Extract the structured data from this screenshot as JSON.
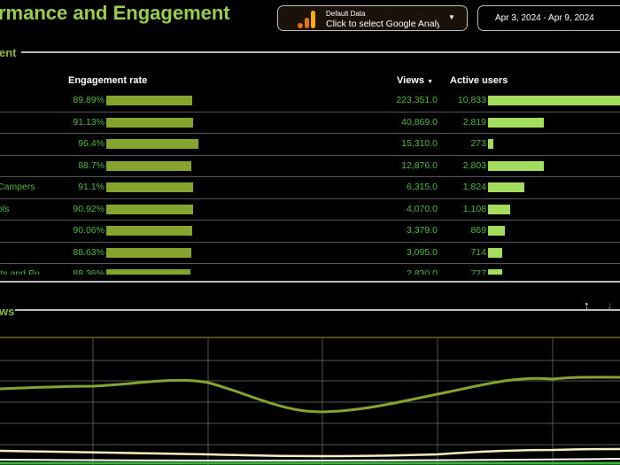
{
  "header": {
    "title": "rmance and Engagement",
    "data_source": {
      "label": "Default Data",
      "value": "Click to select Google Analyti",
      "icon": "google-analytics-icon"
    },
    "date_range": "Apr 3, 2024 - Apr 9, 2024"
  },
  "table_section": {
    "title": "ent",
    "columns": {
      "engagement": "Engagement rate",
      "views": "Views",
      "active_users": "Active users"
    },
    "rows": [
      {
        "name": "",
        "engagement": "89.89%",
        "rate": 89.89,
        "views": "223,351.0",
        "users": "10,833",
        "users_n": 10833
      },
      {
        "name": "",
        "engagement": "91.13%",
        "rate": 91.13,
        "views": "40,869.0",
        "users": "2,819",
        "users_n": 2819
      },
      {
        "name": "",
        "engagement": "96.4%",
        "rate": 96.4,
        "views": "15,310.0",
        "users": "273",
        "users_n": 273
      },
      {
        "name": "",
        "engagement": "88.7%",
        "rate": 88.7,
        "views": "12,876.0",
        "users": "2,803",
        "users_n": 2803
      },
      {
        "name": "Campers",
        "engagement": "91.1%",
        "rate": 91.1,
        "views": "6,315.0",
        "users": "1,824",
        "users_n": 1824
      },
      {
        "name": "ols",
        "engagement": "90.92%",
        "rate": 90.92,
        "views": "4,070.0",
        "users": "1,108",
        "users_n": 1108
      },
      {
        "name": "",
        "engagement": "90.06%",
        "rate": 90.06,
        "views": "3,379.0",
        "users": "869",
        "users_n": 869
      },
      {
        "name": "",
        "engagement": "88.63%",
        "rate": 88.63,
        "views": "3,095.0",
        "users": "714",
        "users_n": 714
      },
      {
        "name": "rts and Po",
        "engagement": "88.36%",
        "rate": 88.36,
        "views": "2,830.0",
        "users": "727",
        "users_n": 727
      }
    ]
  },
  "chart_section": {
    "title": "ws"
  },
  "colors": {
    "accent": "#9acd48",
    "bar_engagement": "#84a42e",
    "bar_users": "#a4dc5e",
    "text_green": "#4fb83c"
  }
}
